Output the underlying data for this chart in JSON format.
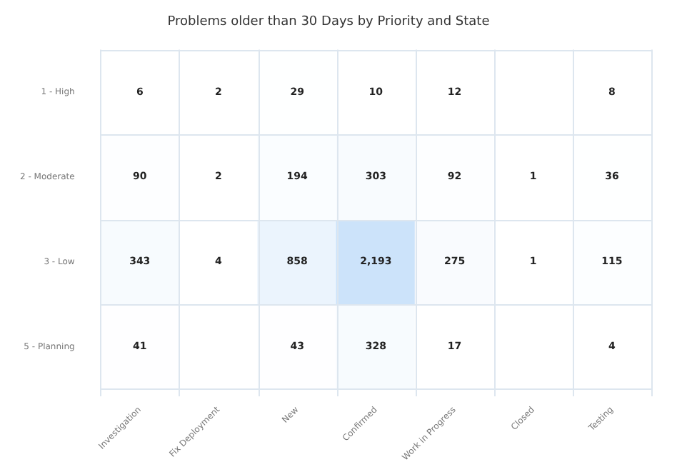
{
  "chart_data": {
    "type": "heatmap",
    "title": "Problems older than 30 Days by Priority and State",
    "categories": [
      "Investigation",
      "Fix Deployment",
      "New",
      "Confirmed",
      "Work in Progress",
      "Closed",
      "Testing"
    ],
    "y_categories": [
      "1 - High",
      "2 - Moderate",
      "3 - Low",
      "5 - Planning"
    ],
    "cells": [
      [
        6,
        2,
        29,
        10,
        12,
        null,
        8
      ],
      [
        90,
        2,
        194,
        303,
        92,
        1,
        36
      ],
      [
        343,
        4,
        858,
        2193,
        275,
        1,
        115
      ],
      [
        41,
        null,
        43,
        328,
        17,
        null,
        4
      ]
    ],
    "cell_labels": [
      [
        "6",
        "2",
        "29",
        "10",
        "12",
        null,
        "8"
      ],
      [
        "90",
        "2",
        "194",
        "303",
        "92",
        "1",
        "36"
      ],
      [
        "343",
        "4",
        "858",
        "2,193",
        "275",
        "1",
        "115"
      ],
      [
        "41",
        null,
        "43",
        "328",
        "17",
        null,
        "4"
      ]
    ],
    "colors": [
      "#ffffff",
      "#cce3fa"
    ]
  }
}
